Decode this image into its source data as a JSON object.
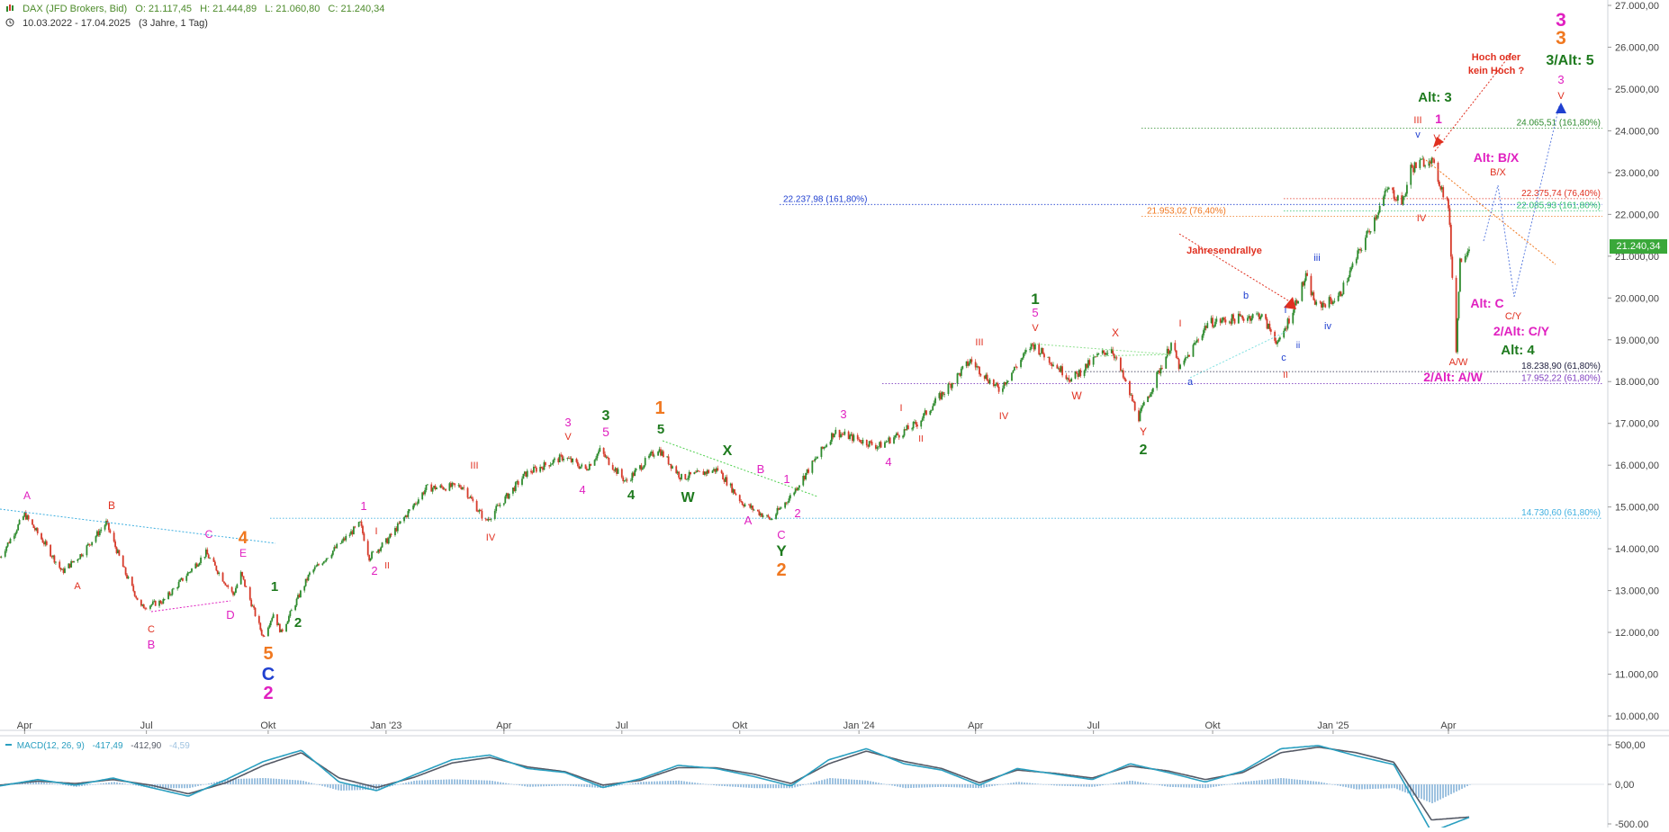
{
  "header": {
    "instrument": "DAX (JFD Brokers, Bid)",
    "open": "O: 21.117,45",
    "high": "H: 21.444,89",
    "low": "L: 21.060,80",
    "close": "C: 21.240,34",
    "range": "10.03.2022 - 17.04.2025",
    "period": "(3 Jahre, 1 Tag)"
  },
  "colors": {
    "up": "#2e8b2e",
    "down": "#d63a2a",
    "green": "#1e7a1e",
    "magenta": "#e020c0",
    "red": "#e03020",
    "orange": "#f07820",
    "blue": "#2040d0",
    "macd": "#2a9fc0",
    "signal": "#555a66",
    "hist": "#9ec2e0"
  },
  "price_badge": "21.240,34",
  "macd_legend": {
    "name": "MACD(12, 26, 9)",
    "v1": "-417,49",
    "v2": "-412,90",
    "v3": "-4,59"
  },
  "chart_data": [
    {
      "type": "candlestick",
      "title": "DAX (JFD Brokers, Bid)",
      "x_ticks": [
        "Apr",
        "Jul",
        "Okt",
        "Jan '23",
        "Apr",
        "Jul",
        "Okt",
        "Jan '24",
        "Apr",
        "Jul",
        "Okt",
        "Jan '25",
        "Apr"
      ],
      "y_ticks": [
        "27.000,00",
        "26.000,00",
        "25.000,00",
        "24.000,00",
        "23.000,00",
        "22.000,00",
        "21.000,00",
        "20.000,00",
        "19.000,00",
        "18.000,00",
        "17.000,00",
        "16.000,00",
        "15.000,00",
        "14.000,00",
        "13.000,00",
        "12.000,00",
        "11.000,00",
        "10.000,00"
      ],
      "ylim": [
        9800,
        27100
      ],
      "x_range": [
        "2022-03-10",
        "2025-04-17"
      ],
      "path_points": [
        [
          "2022-03-10",
          13800
        ],
        [
          "2022-03-29",
          14820
        ],
        [
          "2022-04-14",
          14100
        ],
        [
          "2022-04-27",
          13450
        ],
        [
          "2022-05-11",
          13850
        ],
        [
          "2022-05-31",
          14620
        ],
        [
          "2022-06-15",
          13400
        ],
        [
          "2022-06-27",
          12600
        ],
        [
          "2022-07-14",
          12750
        ],
        [
          "2022-08-16",
          13900
        ],
        [
          "2022-09-06",
          12900
        ],
        [
          "2022-09-12",
          13400
        ],
        [
          "2022-09-29",
          11900
        ],
        [
          "2022-10-07",
          12450
        ],
        [
          "2022-10-13",
          12000
        ],
        [
          "2022-11-04",
          13400
        ],
        [
          "2022-12-13",
          14600
        ],
        [
          "2022-12-20",
          13800
        ],
        [
          "2023-01-03",
          14200
        ],
        [
          "2023-02-02",
          15450
        ],
        [
          "2023-03-02",
          15500
        ],
        [
          "2023-03-20",
          14650
        ],
        [
          "2023-04-20",
          15800
        ],
        [
          "2023-05-19",
          16200
        ],
        [
          "2023-06-05",
          15900
        ],
        [
          "2023-06-16",
          16350
        ],
        [
          "2023-07-06",
          15600
        ],
        [
          "2023-07-31",
          16400
        ],
        [
          "2023-08-18",
          15700
        ],
        [
          "2023-09-15",
          15900
        ],
        [
          "2023-10-04",
          15100
        ],
        [
          "2023-10-26",
          14700
        ],
        [
          "2023-11-10",
          15250
        ],
        [
          "2023-12-14",
          16800
        ],
        [
          "2024-01-17",
          16450
        ],
        [
          "2024-02-16",
          17000
        ],
        [
          "2024-03-28",
          18500
        ],
        [
          "2024-04-19",
          17800
        ],
        [
          "2024-05-15",
          18900
        ],
        [
          "2024-06-14",
          18050
        ],
        [
          "2024-07-04",
          18600
        ],
        [
          "2024-07-15",
          18800
        ],
        [
          "2024-08-05",
          17150
        ],
        [
          "2024-08-30",
          18900
        ],
        [
          "2024-09-06",
          18300
        ],
        [
          "2024-09-27",
          19400
        ],
        [
          "2024-11-07",
          19600
        ],
        [
          "2024-11-21",
          18900
        ],
        [
          "2024-12-12",
          20500
        ],
        [
          "2024-12-20",
          19800
        ],
        [
          "2025-01-06",
          20000
        ],
        [
          "2025-02-13",
          22600
        ],
        [
          "2025-02-25",
          22300
        ],
        [
          "2025-03-03",
          23100
        ],
        [
          "2025-03-18",
          23350
        ],
        [
          "2025-04-01",
          22200
        ],
        [
          "2025-04-07",
          18800
        ],
        [
          "2025-04-10",
          20900
        ],
        [
          "2025-04-17",
          21240
        ]
      ],
      "horizontal_levels": [
        {
          "label": "24.065,51 (161,80%)",
          "value": 24065.51,
          "color": "#2e8b2e"
        },
        {
          "label": "22.375,74 (76,40%)",
          "value": 22375.74,
          "color": "#e03020"
        },
        {
          "label": "22.237,98 (161,80%)",
          "value": 22237.98,
          "color": "#2040d0"
        },
        {
          "label": "22.085,93 (161,80%)",
          "value": 22085.93,
          "color": "#30c070"
        },
        {
          "label": "21.953,02 (76,40%)",
          "value": 21953.02,
          "color": "#f07820"
        },
        {
          "label": "18.238,90 (61,80%)",
          "value": 18238.9,
          "color": "#202040"
        },
        {
          "label": "17.952,22 (61,80%)",
          "value": 17952.22,
          "color": "#8040c0"
        },
        {
          "label": "14.730,60 (61,80%)",
          "value": 14730.6,
          "color": "#40b0e0"
        }
      ],
      "annotations": [
        "Hoch oder kein Hoch ?",
        "Jahresendrallye",
        "Alt: 3",
        "3/Alt: 5",
        "Alt: B/X",
        "Alt: C",
        "2/Alt: C/Y",
        "Alt: 4",
        "2/Alt: A/W",
        "A/W",
        "B/X",
        "C/Y",
        "1",
        "2",
        "3",
        "4",
        "5",
        "A",
        "B",
        "C",
        "D",
        "E",
        "W",
        "X",
        "Y",
        "I",
        "II",
        "III",
        "IV",
        "V",
        "i",
        "ii",
        "iii",
        "iv",
        "v",
        "a",
        "b",
        "c"
      ]
    },
    {
      "type": "line",
      "title": "MACD(12, 26, 9)",
      "series": [
        {
          "name": "MACD",
          "values": [
            -20,
            60,
            -10,
            80,
            -40,
            -150,
            60,
            290,
            430,
            30,
            -80,
            120,
            310,
            370,
            200,
            150,
            -40,
            70,
            240,
            200,
            100,
            -20,
            310,
            450,
            260,
            180,
            -10,
            200,
            130,
            60,
            260,
            150,
            30,
            170,
            450,
            490,
            360,
            250,
            -600,
            -417
          ]
        },
        {
          "name": "Signal",
          "values": [
            -10,
            40,
            10,
            60,
            -10,
            -120,
            20,
            240,
            400,
            80,
            -40,
            90,
            270,
            340,
            220,
            160,
            -10,
            50,
            210,
            210,
            130,
            10,
            260,
            420,
            290,
            200,
            20,
            180,
            140,
            80,
            230,
            170,
            60,
            150,
            400,
            470,
            400,
            280,
            -450,
            -413
          ]
        }
      ],
      "y_ticks": [
        "500,00",
        "0,00",
        "-500,00"
      ],
      "ylim": [
        -620,
        600
      ]
    }
  ]
}
